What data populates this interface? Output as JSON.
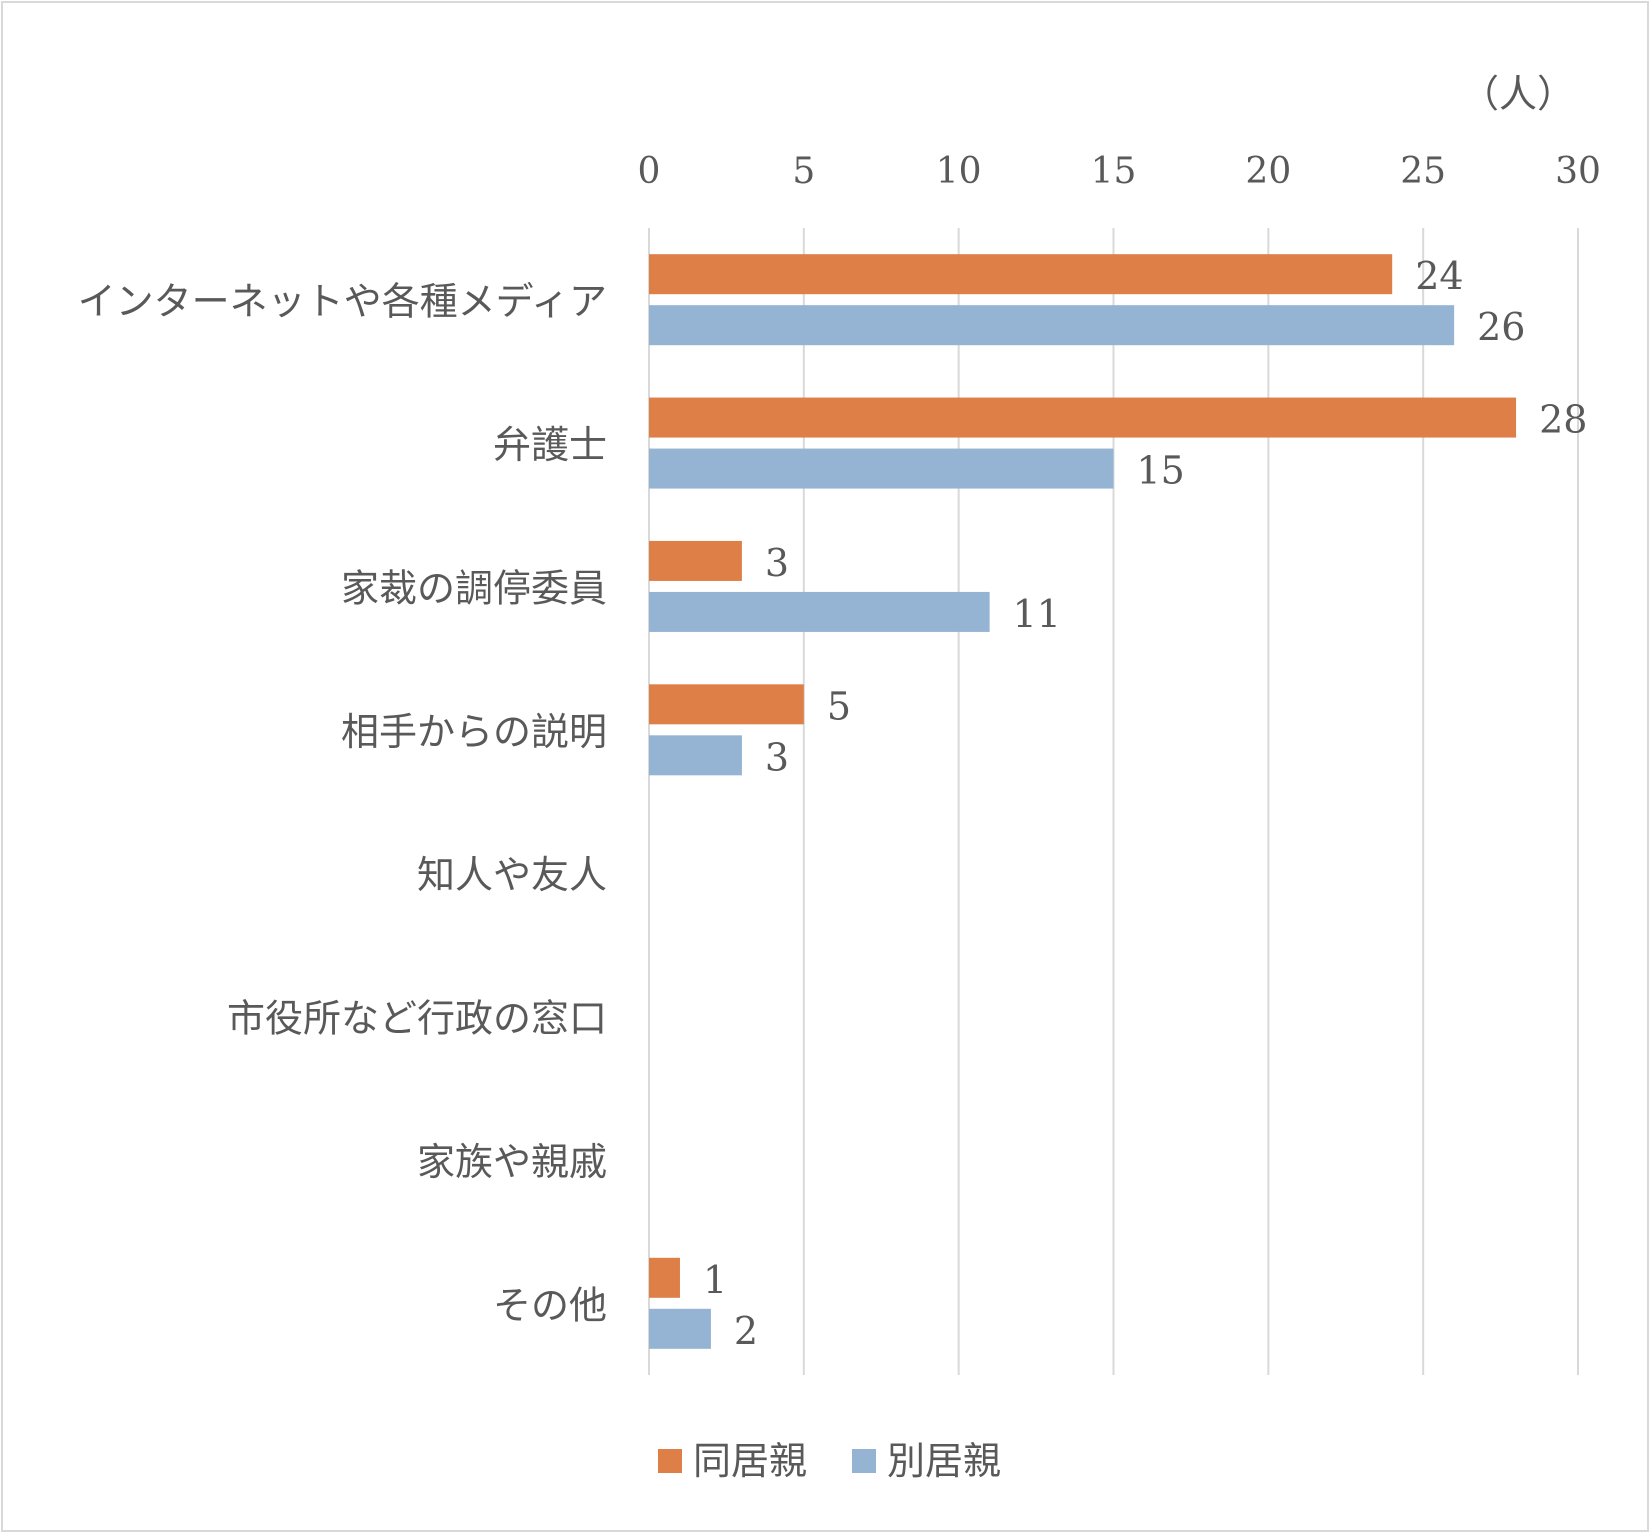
{
  "chart_data": {
    "type": "bar",
    "orientation": "horizontal",
    "title": "",
    "unit_label": "（人）",
    "xlim": [
      0,
      30
    ],
    "x_ticks": [
      0,
      5,
      10,
      15,
      20,
      25,
      30
    ],
    "grid": true,
    "legend_position": "bottom",
    "categories": [
      "インターネットや各種メディア",
      "弁護士",
      "家裁の調停委員",
      "相手からの説明",
      "知人や友人",
      "市役所など行政の窓口",
      "家族や親戚",
      "その他"
    ],
    "series": [
      {
        "name": "同居親",
        "color": "#dd7f47",
        "values": [
          24,
          28,
          3,
          5,
          null,
          null,
          null,
          1
        ]
      },
      {
        "name": "別居親",
        "color": "#95b3d3",
        "values": [
          26,
          15,
          11,
          3,
          null,
          null,
          null,
          2
        ]
      }
    ]
  }
}
